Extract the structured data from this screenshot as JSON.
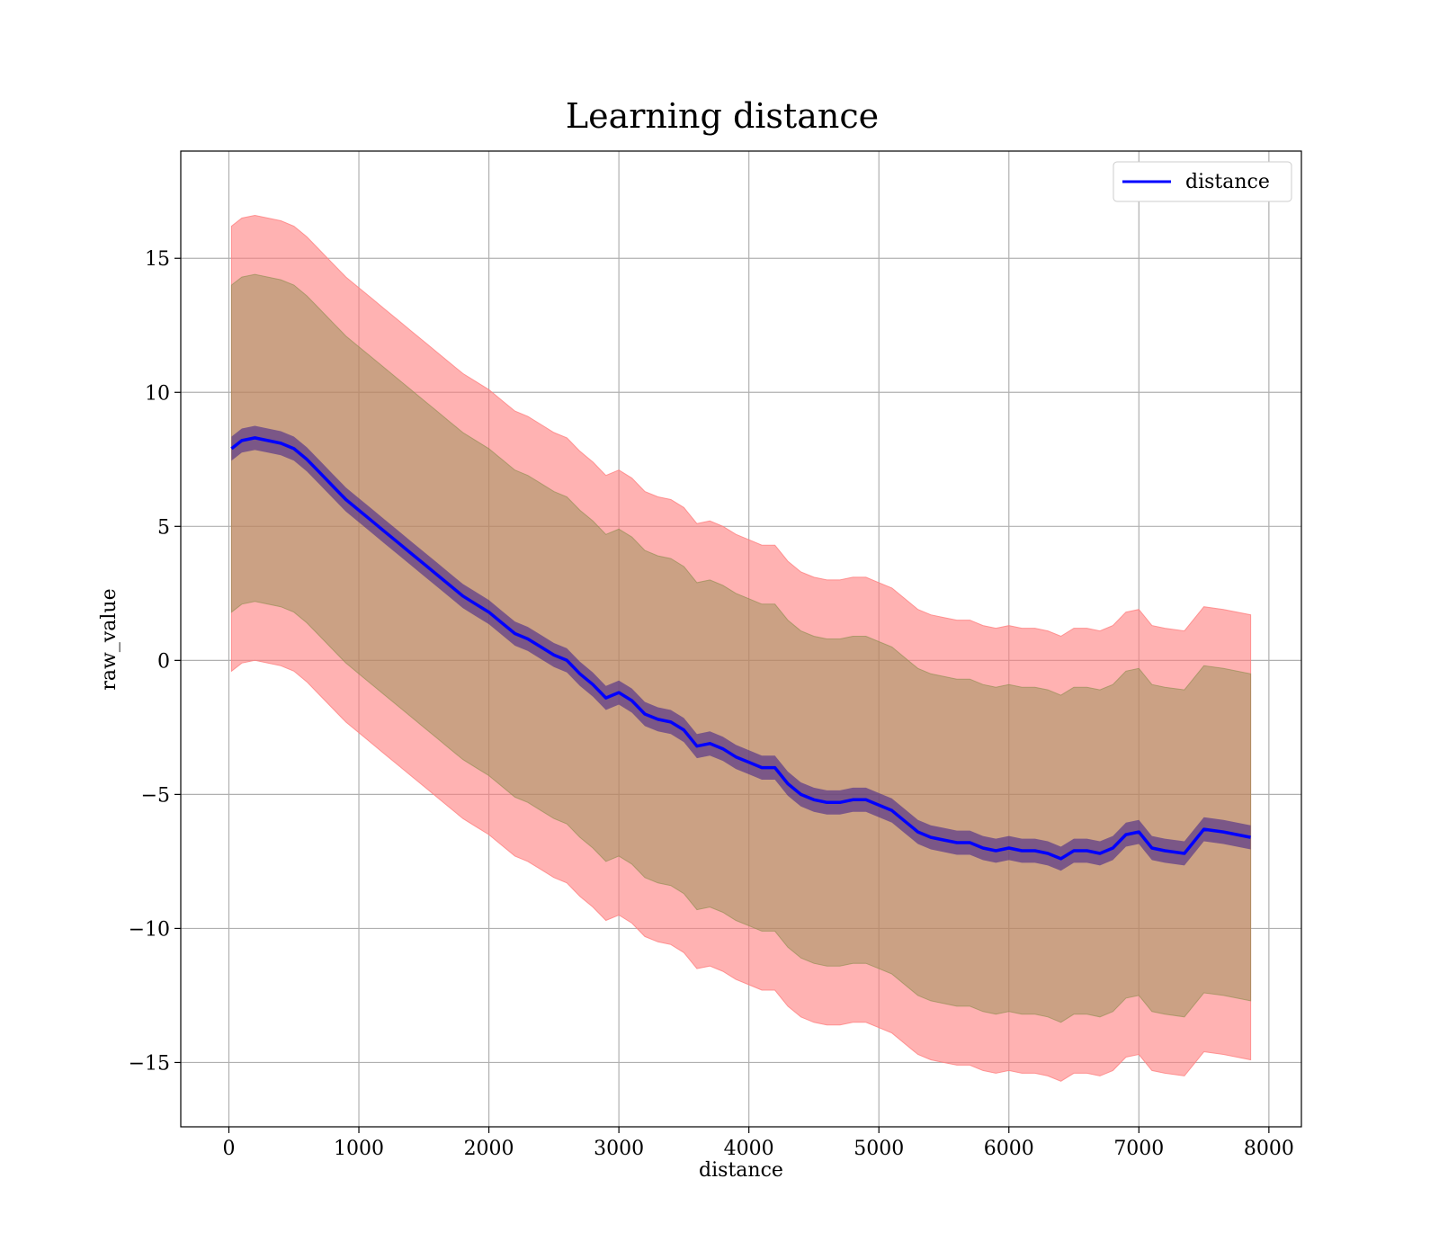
{
  "chart_data": {
    "type": "line",
    "title": "Learning distance",
    "xlabel": "distance",
    "ylabel": "raw_value",
    "xlim": [
      -370,
      8250
    ],
    "ylim": [
      -17.4,
      19.0
    ],
    "xticks": [
      0,
      1000,
      2000,
      3000,
      4000,
      5000,
      6000,
      7000,
      8000
    ],
    "xtick_labels": [
      "0",
      "1000",
      "2000",
      "3000",
      "4000",
      "5000",
      "6000",
      "7000",
      "8000"
    ],
    "yticks": [
      -15,
      -10,
      -5,
      0,
      5,
      10,
      15
    ],
    "ytick_labels": [
      "−15",
      "−10",
      "−5",
      "0",
      "5",
      "10",
      "15"
    ],
    "grid": true,
    "legend": {
      "position": "top-right",
      "entries": [
        "distance"
      ]
    },
    "colors": {
      "line": "#0000ff",
      "band_outer": "#ff7f7f",
      "band_middle": "#8c8c4c",
      "band_inner": "#3b1b8a"
    },
    "series": [
      {
        "name": "distance",
        "x": [
          20,
          100,
          200,
          300,
          400,
          500,
          600,
          700,
          800,
          900,
          1000,
          1100,
          1200,
          1300,
          1400,
          1500,
          1600,
          1700,
          1800,
          1900,
          2000,
          2100,
          2200,
          2300,
          2400,
          2500,
          2600,
          2700,
          2800,
          2900,
          3000,
          3100,
          3200,
          3300,
          3400,
          3500,
          3600,
          3700,
          3800,
          3900,
          4000,
          4100,
          4200,
          4300,
          4400,
          4500,
          4600,
          4700,
          4800,
          4900,
          5000,
          5100,
          5200,
          5300,
          5400,
          5500,
          5600,
          5700,
          5800,
          5900,
          6000,
          6100,
          6200,
          6300,
          6400,
          6500,
          6600,
          6700,
          6800,
          6900,
          7000,
          7100,
          7200,
          7350,
          7500,
          7650,
          7860
        ],
        "mean": [
          7.9,
          8.2,
          8.3,
          8.2,
          8.1,
          7.9,
          7.5,
          7.0,
          6.5,
          6.0,
          5.6,
          5.2,
          4.8,
          4.4,
          4.0,
          3.6,
          3.2,
          2.8,
          2.4,
          2.1,
          1.8,
          1.4,
          1.0,
          0.8,
          0.5,
          0.2,
          0.0,
          -0.5,
          -0.9,
          -1.4,
          -1.2,
          -1.5,
          -2.0,
          -2.2,
          -2.3,
          -2.6,
          -3.2,
          -3.1,
          -3.3,
          -3.6,
          -3.8,
          -4.0,
          -4.0,
          -4.6,
          -5.0,
          -5.2,
          -5.3,
          -5.3,
          -5.2,
          -5.2,
          -5.4,
          -5.6,
          -6.0,
          -6.4,
          -6.6,
          -6.7,
          -6.8,
          -6.8,
          -7.0,
          -7.1,
          -7.0,
          -7.1,
          -7.1,
          -7.2,
          -7.4,
          -7.1,
          -7.1,
          -7.2,
          -7.0,
          -6.5,
          -6.4,
          -7.0,
          -7.1,
          -7.2,
          -6.3,
          -6.4,
          -6.6
        ],
        "inner_band_halfwidth": 0.45,
        "middle_band_halfwidth": 6.1,
        "outer_band_halfwidth": 8.3
      }
    ]
  }
}
